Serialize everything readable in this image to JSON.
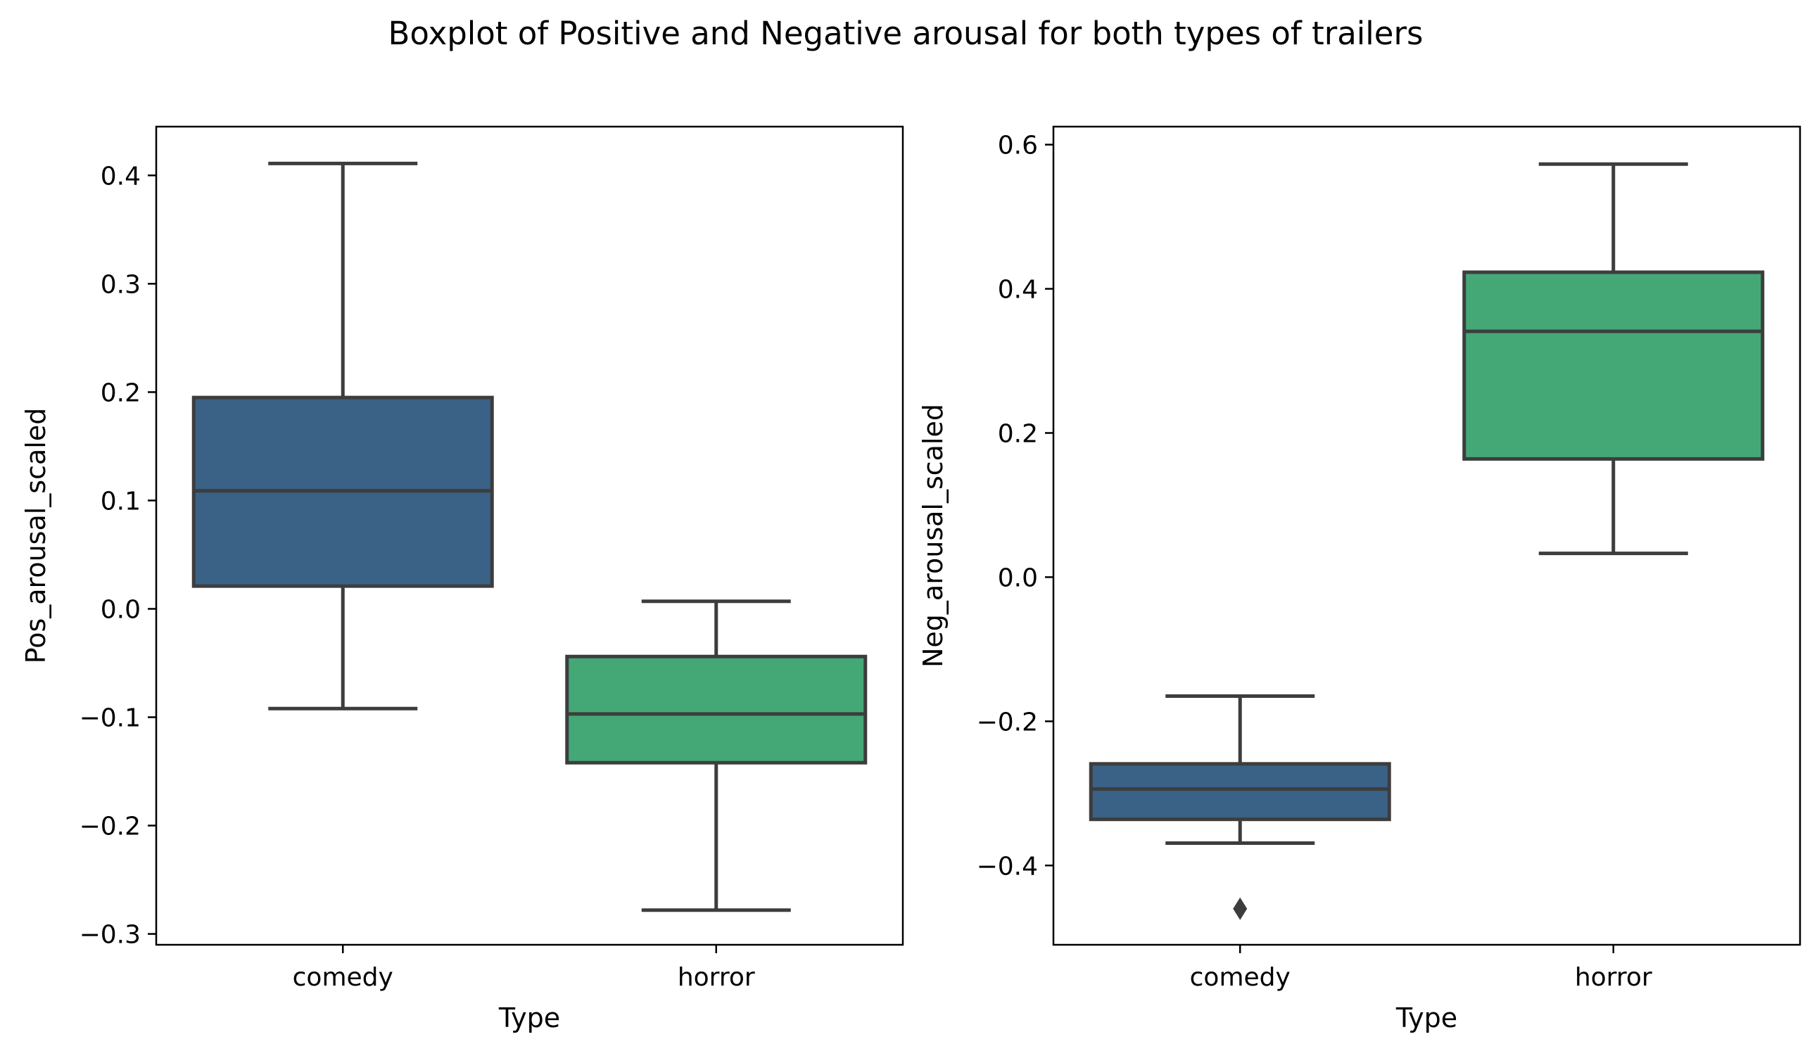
{
  "suptitle": "Boxplot of Positive and Negative arousal for both types of trailers",
  "colors": {
    "comedy": "#3a6186",
    "horror": "#44a876",
    "line": "#3d3d3d",
    "frame": "#000000"
  },
  "chart_data": [
    {
      "type": "box",
      "title": "",
      "xlabel": "Type",
      "ylabel": "Pos_arousal_scaled",
      "categories": [
        "comedy",
        "horror"
      ],
      "ylim": [
        -0.31,
        0.445
      ],
      "yticks": [
        -0.3,
        -0.2,
        -0.1,
        0.0,
        0.1,
        0.2,
        0.3,
        0.4
      ],
      "ytick_labels": [
        "−0.3",
        "−0.2",
        "−0.1",
        "0.0",
        "0.1",
        "0.2",
        "0.3",
        "0.4"
      ],
      "boxes": [
        {
          "name": "comedy",
          "whislo": -0.092,
          "q1": 0.021,
          "median": 0.109,
          "q3": 0.195,
          "whishi": 0.411,
          "fliers": []
        },
        {
          "name": "horror",
          "whislo": -0.278,
          "q1": -0.142,
          "median": -0.097,
          "q3": -0.044,
          "whishi": 0.007,
          "fliers": []
        }
      ]
    },
    {
      "type": "box",
      "title": "",
      "xlabel": "Type",
      "ylabel": "Neg_arousal_scaled",
      "categories": [
        "comedy",
        "horror"
      ],
      "ylim": [
        -0.51,
        0.625
      ],
      "yticks": [
        -0.4,
        -0.2,
        0.0,
        0.2,
        0.4,
        0.6
      ],
      "ytick_labels": [
        "−0.4",
        "−0.2",
        "0.0",
        "0.2",
        "0.4",
        "0.6"
      ],
      "boxes": [
        {
          "name": "comedy",
          "whislo": -0.369,
          "q1": -0.336,
          "median": -0.294,
          "q3": -0.259,
          "whishi": -0.165,
          "fliers": [
            -0.46
          ]
        },
        {
          "name": "horror",
          "whislo": 0.033,
          "q1": 0.164,
          "median": 0.341,
          "q3": 0.423,
          "whishi": 0.573,
          "fliers": []
        }
      ]
    }
  ]
}
